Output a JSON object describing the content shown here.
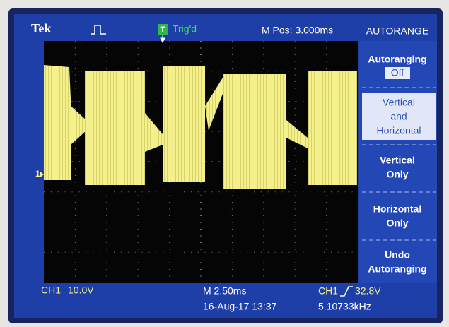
{
  "header": {
    "brand": "Tek",
    "trigger_icon": "T",
    "trigger_status": "Trig'd",
    "position": "M Pos: 3.000ms"
  },
  "menu": {
    "title": "AUTORANGE",
    "items": [
      {
        "lines": [
          "Autoranging"
        ],
        "state": "Off"
      },
      {
        "lines": [
          "Vertical",
          "and",
          "Horizontal"
        ]
      },
      {
        "lines": [
          "Vertical",
          "Only"
        ]
      },
      {
        "lines": [
          "Horizontal",
          "Only"
        ]
      },
      {
        "lines": [
          "Undo",
          "Autoranging"
        ]
      }
    ]
  },
  "channel_marker": "1",
  "footer": {
    "channel": "CH1",
    "scale": "10.0V",
    "timebase": "M 2.50ms",
    "datetime": "16-Aug-17 13:37",
    "trigger_channel": "CH1",
    "trigger_level": "32.8V",
    "frequency": "5.10733kHz"
  }
}
